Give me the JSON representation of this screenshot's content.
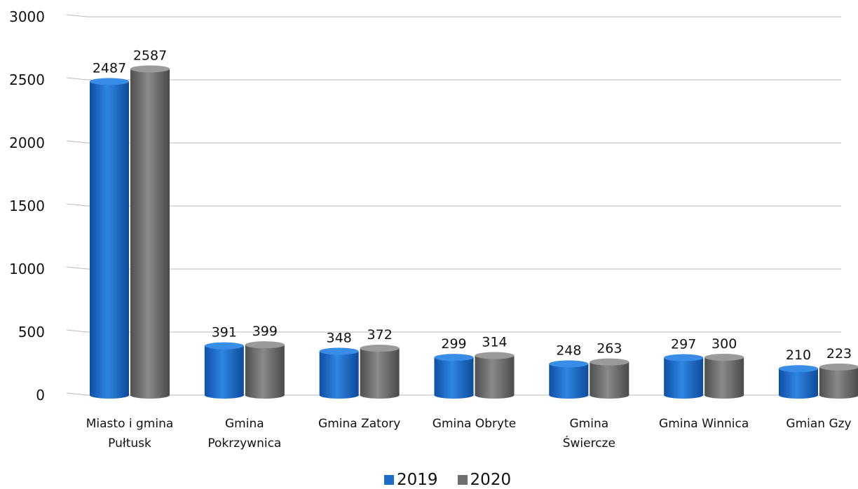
{
  "chart_data": {
    "type": "bar",
    "categories": [
      [
        "Miasto i gmina",
        "Pułtusk"
      ],
      [
        "Gmina",
        "Pokrzywnica"
      ],
      [
        "Gmina Zatory"
      ],
      [
        "Gmina Obryte"
      ],
      [
        "Gmina",
        "Świercze"
      ],
      [
        "Gmina Winnica"
      ],
      [
        "Gmian Gzy"
      ]
    ],
    "series": [
      {
        "name": "2019",
        "color": "#1d6cc9",
        "values": [
          2487,
          391,
          348,
          299,
          248,
          297,
          210
        ]
      },
      {
        "name": "2020",
        "color": "#6f6f6f",
        "values": [
          2587,
          399,
          372,
          314,
          263,
          300,
          223
        ]
      }
    ],
    "ylim": [
      0,
      3000
    ],
    "yticks": [
      "0",
      "500",
      "1000",
      "1500",
      "2000",
      "2500",
      "3000"
    ],
    "grid": true,
    "legend_position": "bottom"
  }
}
